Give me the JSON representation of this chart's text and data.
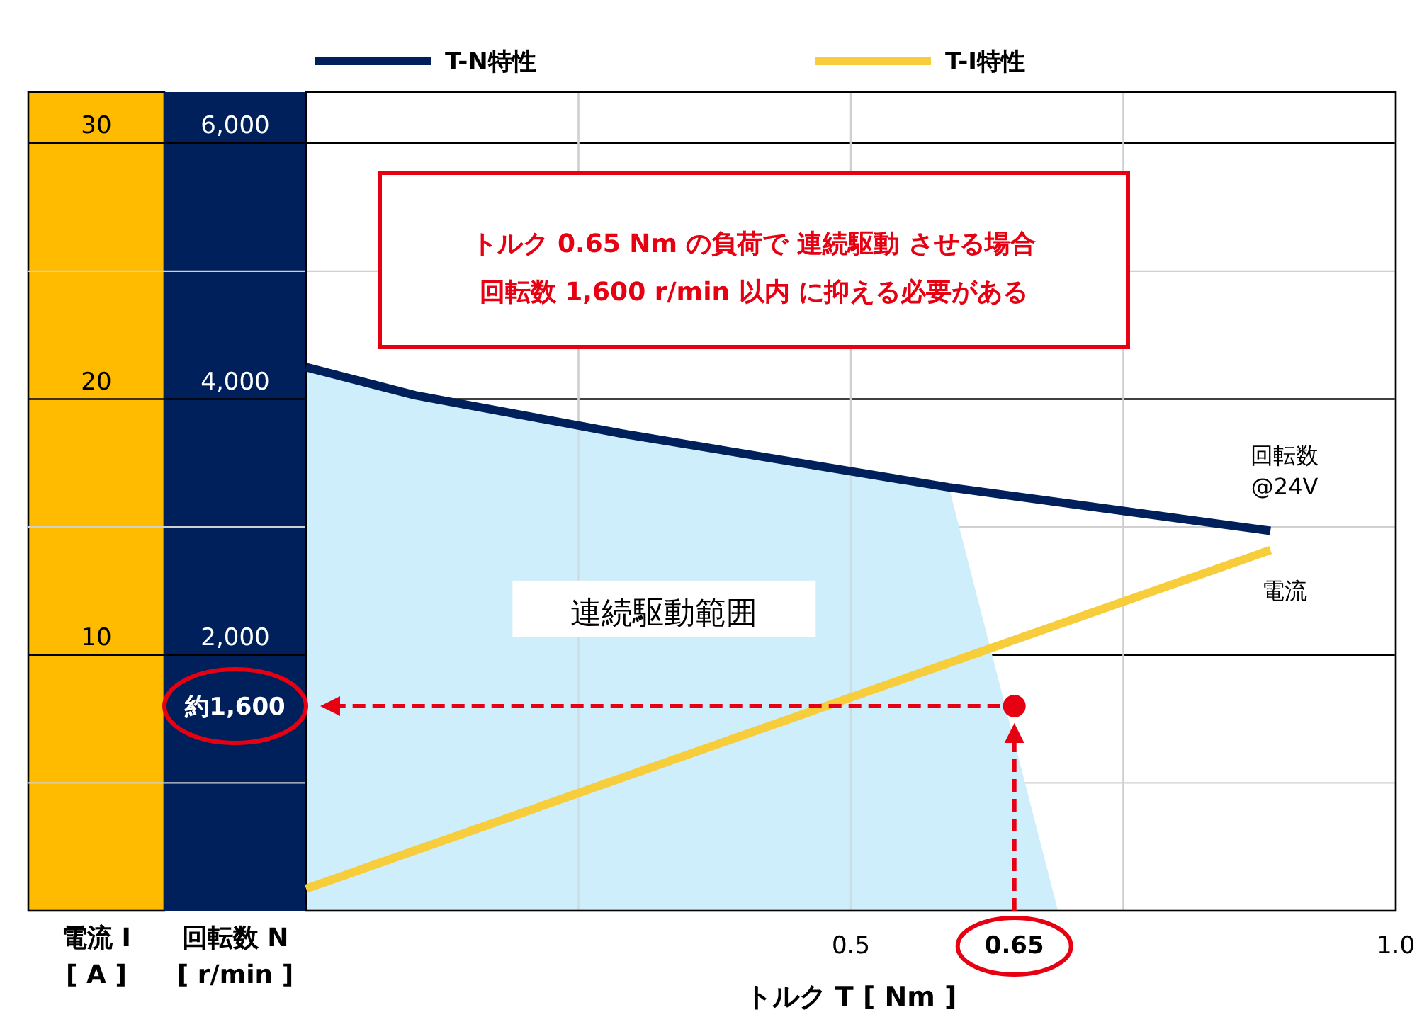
{
  "chart_data": {
    "type": "line",
    "xlabel": "トルク T [ Nm ]",
    "ylabel": "回転数 N [ r/min ]",
    "y2label": "電流 I [ A ]",
    "xlim": [
      0,
      1.0
    ],
    "xticks": [
      {
        "value": 0.25,
        "label": null
      },
      0.5,
      0.65,
      {
        "value": 0.75,
        "label": null
      },
      {
        "value": 1.0,
        "label": "1.0"
      }
    ],
    "ylim": [
      0,
      6400
    ],
    "yticks": [
      {
        "value": 1000,
        "label": null
      },
      {
        "value": 2000,
        "label": "2,000"
      },
      {
        "value": 3000,
        "label": null
      },
      {
        "value": 4000,
        "label": "4,000"
      },
      {
        "value": 5000,
        "label": null
      },
      {
        "value": 6000,
        "label": "6,000"
      }
    ],
    "y2lim": [
      0,
      32
    ],
    "y2ticks": [
      10,
      20,
      30
    ],
    "grid": true,
    "legend": "top",
    "series": [
      {
        "type": "area",
        "name": "連続駆動範囲",
        "color": "#cdeefa",
        "x": [
          0,
          0.1,
          0.29,
          0.59,
          0.69
        ],
        "values": [
          4250,
          4030,
          3730,
          3310,
          0
        ]
      },
      {
        "name": "T-N特性",
        "color": "#00205b",
        "x": [
          0,
          0.1,
          0.29,
          0.59,
          0.885
        ],
        "values": [
          4250,
          4030,
          3730,
          3310,
          2970
        ]
      },
      {
        "name": "T-I特性",
        "color": "#f7cd3c",
        "axis": "y2",
        "x": [
          0,
          0.885
        ],
        "values": [
          0.86,
          14.1
        ]
      },
      {
        "type": "scatter",
        "color": "#e60012",
        "x": [
          0.65
        ],
        "values": [
          1600
        ],
        "marker": "circle"
      }
    ],
    "annotations": [
      "トルク 0.65 Nm の負荷で 連続駆動 させる場合",
      "回転数 1,600 r/min 以内 に抑える必要がある",
      "回転数 @24V",
      "電流",
      "約1,600"
    ]
  }
}
